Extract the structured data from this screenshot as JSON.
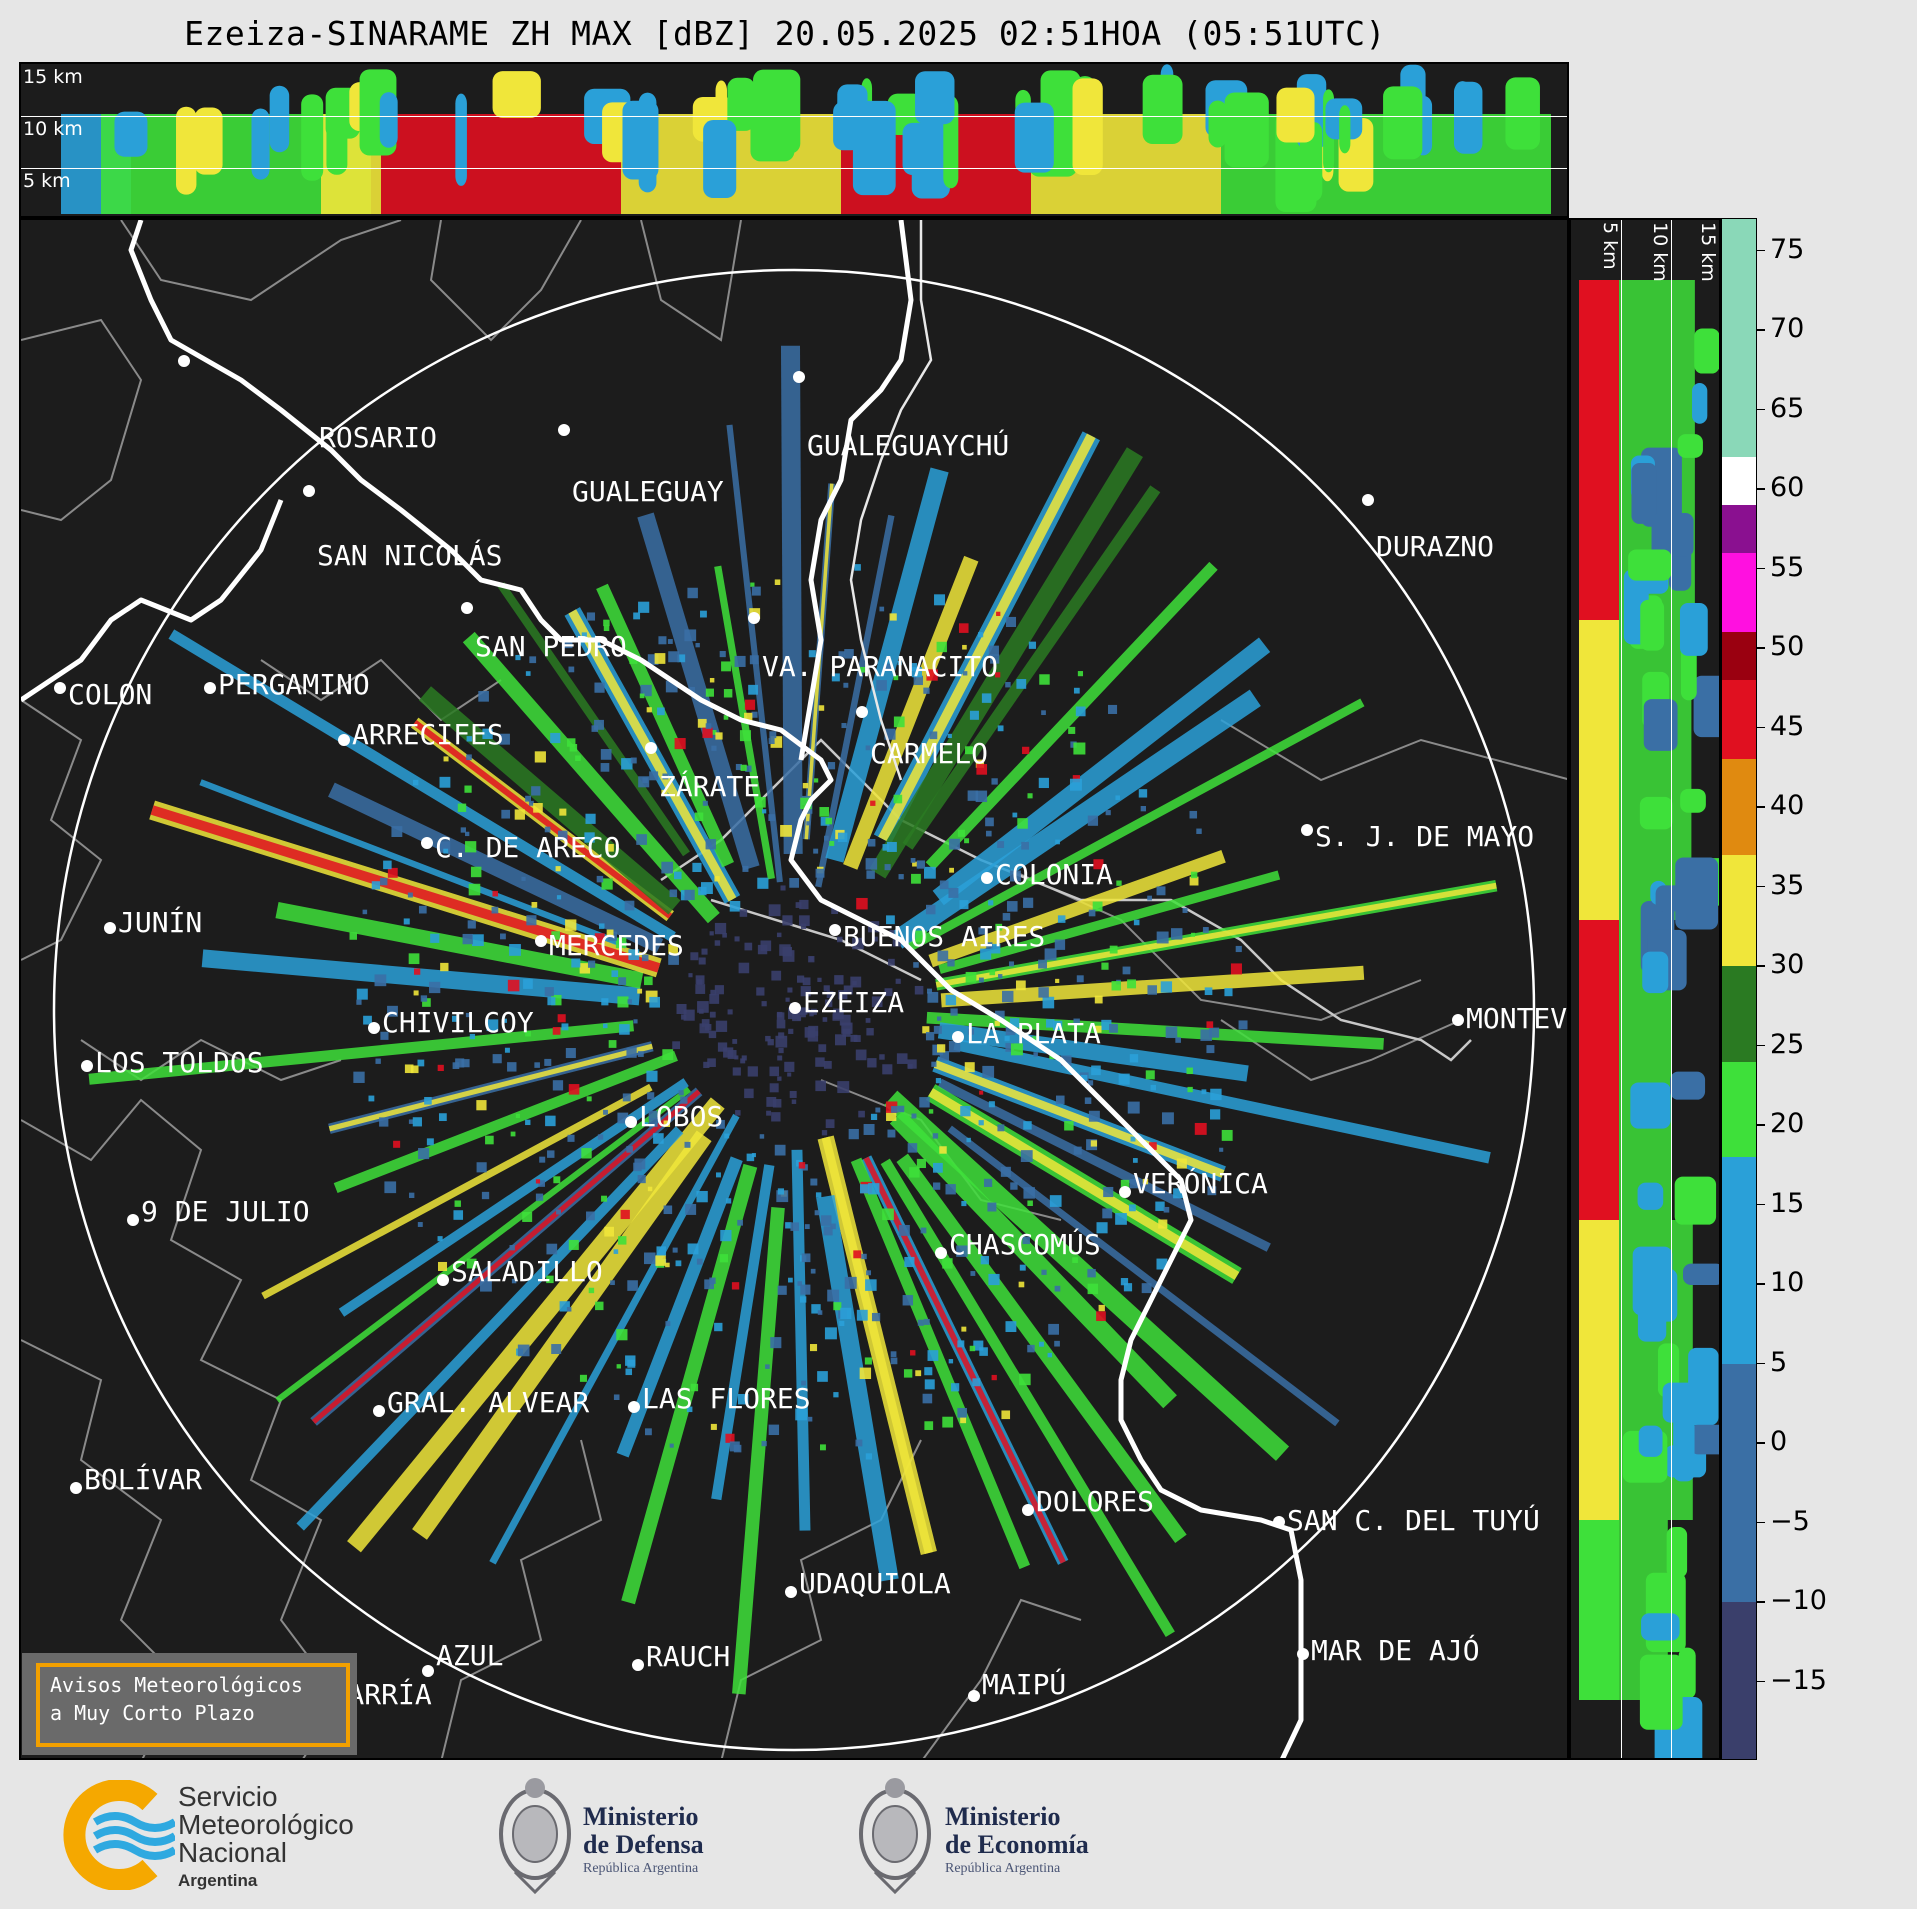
{
  "title": "Ezeiza-SINARAME ZH MAX [dBZ] 20.05.2025 02:51HOA (05:51UTC)",
  "top_panel": {
    "altitude_labels": [
      "15 km",
      "10 km",
      "5 km"
    ]
  },
  "side_panel": {
    "altitude_labels": [
      "5 km",
      "10 km",
      "15 km"
    ]
  },
  "colorbar": {
    "ticks": [
      "75",
      "70",
      "65",
      "60",
      "55",
      "50",
      "45",
      "40",
      "35",
      "30",
      "25",
      "20",
      "15",
      "10",
      "5",
      "0",
      "−5",
      "−10",
      "−15"
    ],
    "range": [
      -20,
      77
    ],
    "colors": {
      "dark_blue": "#3a3f6b",
      "blue": "#3a6fa5",
      "light_blue": "#2aa0d8",
      "green": "#3ee03a",
      "dark_green": "#2a7a22",
      "yellow": "#f0e63a",
      "orange": "#e08a10",
      "red": "#e01020",
      "dark_red": "#9a0010",
      "magenta": "#ff10e0",
      "purple": "#8a1090",
      "white": "#ffffff",
      "mint": "#8ad8b8"
    }
  },
  "cities": [
    {
      "name": "ROSARIO"
    },
    {
      "name": "GUALEGUAYCHÚ"
    },
    {
      "name": "GUALEGUAY"
    },
    {
      "name": "SAN NICOLÁS"
    },
    {
      "name": "DURAZNO"
    },
    {
      "name": "SAN PEDRO"
    },
    {
      "name": "VA. PARANACITO"
    },
    {
      "name": "COLON"
    },
    {
      "name": "PERGAMINO"
    },
    {
      "name": "CARMELO"
    },
    {
      "name": "ARRECIFES"
    },
    {
      "name": "ZÁRATE"
    },
    {
      "name": "S. J. DE MAYO"
    },
    {
      "name": "C. DE ARECO"
    },
    {
      "name": "COLONIA"
    },
    {
      "name": "BUENOS AIRES"
    },
    {
      "name": "JUNÍN"
    },
    {
      "name": "MERCEDES"
    },
    {
      "name": "EZEIZA"
    },
    {
      "name": "MONTEVIDEO"
    },
    {
      "name": "CHIVILCOY"
    },
    {
      "name": "LA PLATA"
    },
    {
      "name": "LOS TOLDOS"
    },
    {
      "name": "LOBOS"
    },
    {
      "name": "VERÓNICA"
    },
    {
      "name": "9 DE JULIO"
    },
    {
      "name": "CHASCOMÚS"
    },
    {
      "name": "SALADILLO"
    },
    {
      "name": "GRAL. ALVEAR"
    },
    {
      "name": "LAS FLORES"
    },
    {
      "name": "BOLÍVAR"
    },
    {
      "name": "DOLORES"
    },
    {
      "name": "SAN C. DEL TUYÚ"
    },
    {
      "name": "UDAQUIOLA"
    },
    {
      "name": "MAR DE AJÓ"
    },
    {
      "name": "AZUL"
    },
    {
      "name": "RAUCH"
    },
    {
      "name": "OLAVARRÍA"
    },
    {
      "name": "MAIPÚ"
    }
  ],
  "alert": {
    "line1": "Avisos Meteorológicos",
    "line2": "a Muy Corto Plazo"
  },
  "footer": {
    "smn": {
      "line1": "Servicio",
      "line2": "Meteorológico",
      "line3": "Nacional",
      "line4": "Argentina"
    },
    "defensa": {
      "line1": "Ministerio",
      "line2": "de Defensa",
      "line3": "República Argentina"
    },
    "economia": {
      "line1": "Ministerio",
      "line2": "de Economía",
      "line3": "República Argentina"
    }
  }
}
